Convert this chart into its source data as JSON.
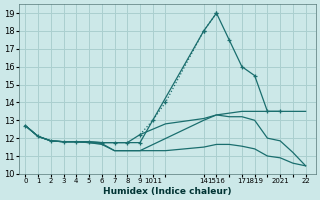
{
  "xlabel": "Humidex (Indice chaleur)",
  "bg_color": "#cce8e8",
  "grid_color": "#aacfcf",
  "line_color": "#1a6e6e",
  "xlim": [
    -0.5,
    22.8
  ],
  "ylim": [
    10,
    19.5
  ],
  "yticks": [
    10,
    11,
    12,
    13,
    14,
    15,
    16,
    17,
    18,
    19
  ],
  "xtick_positions": [
    0,
    1,
    2,
    3,
    4,
    5,
    6,
    7,
    8,
    9,
    10,
    11,
    14,
    15,
    16,
    17,
    18,
    19,
    20,
    21,
    22
  ],
  "xtick_labels": [
    "0",
    "1",
    "2",
    "3",
    "4",
    "5",
    "6",
    "7",
    "8",
    "9",
    "1011",
    "",
    "14",
    "1516",
    "",
    "17",
    "1819",
    "",
    "2021",
    "",
    "22"
  ],
  "line1": {
    "x": [
      0,
      1,
      2,
      3,
      4,
      5,
      6,
      7,
      8,
      9,
      14,
      15,
      16,
      17,
      18,
      19,
      20
    ],
    "y": [
      12.7,
      12.1,
      11.85,
      11.8,
      11.8,
      11.8,
      11.75,
      11.75,
      11.75,
      11.75,
      18.0,
      19.0,
      17.5,
      16.0,
      15.5,
      13.5,
      13.5
    ],
    "linestyle": "-",
    "marker": "+"
  },
  "line2": {
    "x": [
      9,
      10,
      11,
      14,
      15
    ],
    "y": [
      12.2,
      13.0,
      14.0,
      18.0,
      19.0
    ],
    "linestyle": ":",
    "marker": "+"
  },
  "line3": {
    "x": [
      0,
      1,
      2,
      3,
      4,
      5,
      6,
      7,
      8,
      9,
      10,
      11,
      14,
      15,
      16,
      17,
      18,
      19,
      20,
      21,
      22
    ],
    "y": [
      12.7,
      12.1,
      11.85,
      11.8,
      11.8,
      11.8,
      11.75,
      11.75,
      11.75,
      12.2,
      12.5,
      12.8,
      13.1,
      13.3,
      13.4,
      13.5,
      13.5,
      13.5,
      13.5,
      13.5,
      13.5
    ],
    "linestyle": "-",
    "marker": null
  },
  "line4": {
    "x": [
      0,
      1,
      2,
      3,
      4,
      5,
      6,
      7,
      8,
      9,
      14,
      15,
      16,
      17,
      18,
      19,
      20,
      21,
      22
    ],
    "y": [
      12.7,
      12.1,
      11.85,
      11.8,
      11.8,
      11.75,
      11.7,
      11.3,
      11.3,
      11.3,
      13.0,
      13.3,
      13.2,
      13.2,
      13.0,
      12.0,
      11.85,
      11.2,
      10.45
    ],
    "linestyle": "-",
    "marker": null
  },
  "line5": {
    "x": [
      0,
      1,
      2,
      3,
      4,
      5,
      6,
      7,
      8,
      9,
      10,
      11,
      14,
      15,
      16,
      17,
      18,
      19,
      20,
      21,
      22
    ],
    "y": [
      12.7,
      12.1,
      11.85,
      11.8,
      11.8,
      11.75,
      11.65,
      11.3,
      11.3,
      11.3,
      11.3,
      11.3,
      11.5,
      11.65,
      11.65,
      11.55,
      11.4,
      11.0,
      10.9,
      10.6,
      10.45
    ],
    "linestyle": "-",
    "marker": null
  }
}
